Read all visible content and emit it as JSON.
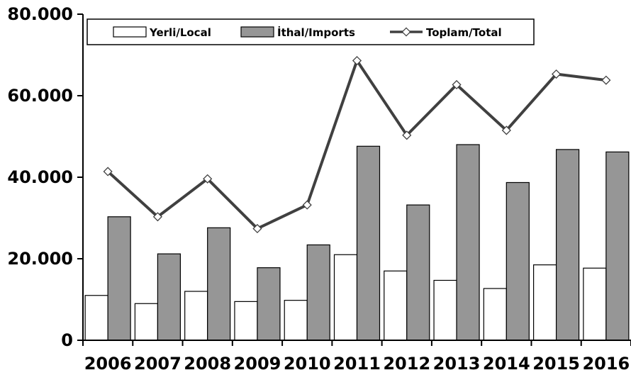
{
  "chart_data": {
    "type": "bar",
    "categories": [
      "2006",
      "2007",
      "2008",
      "2009",
      "2010",
      "2011",
      "2012",
      "2013",
      "2014",
      "2015",
      "2016"
    ],
    "series": [
      {
        "name": "Yerli/Local",
        "type": "bar",
        "color": "#ffffff",
        "values": [
          11000,
          9000,
          12000,
          9500,
          9800,
          21000,
          17000,
          14700,
          12700,
          18500,
          17700
        ]
      },
      {
        "name": "İthal/Imports",
        "type": "bar",
        "color": "#969696",
        "values": [
          30300,
          21200,
          27600,
          17800,
          23400,
          47600,
          33200,
          48000,
          38700,
          46800,
          46200
        ]
      },
      {
        "name": "Toplam/Total",
        "type": "line",
        "color": "#404040",
        "values": [
          41400,
          30300,
          39600,
          27400,
          33200,
          68600,
          50300,
          62700,
          51500,
          65300,
          63800
        ]
      }
    ],
    "yticks": [
      "0",
      "20.000",
      "40.000",
      "60.000",
      "80.000"
    ],
    "ylim": [
      0,
      80000
    ],
    "legend_position": "top"
  }
}
